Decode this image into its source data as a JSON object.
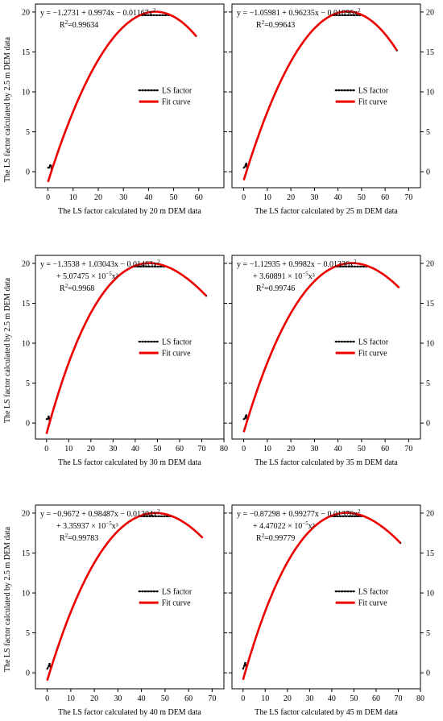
{
  "figure": {
    "ylabel": "The LS factor calculated by 2.5 m DEM data"
  },
  "chart_data": [
    {
      "type": "line",
      "xlabel": "The LS factor calculated by 20 m DEM data",
      "ylabel": "The LS factor calculated by 2.5 m DEM data",
      "xlim": [
        -5,
        70
      ],
      "ylim": [
        -2,
        21
      ],
      "xticks": [
        0,
        10,
        20,
        30,
        40,
        50,
        60
      ],
      "yticks": [
        0,
        5,
        10,
        15,
        20
      ],
      "equation_lines": [
        {
          "text": "y = −1.2731 + 0.9974x − 0.01167x",
          "sup": "2"
        },
        {
          "text": "R",
          "sup": "2",
          "after": "=0.99634"
        }
      ],
      "legend": [
        "LS factor",
        "Fit curve"
      ],
      "legend_position": "center-right",
      "coef": [
        -1.2731,
        0.9974,
        -0.01167,
        0
      ],
      "fit_x_range": [
        0,
        59
      ],
      "data_x_range": [
        0,
        59
      ],
      "plateau": 19.6,
      "series": [
        {
          "name": "LS factor",
          "style": "dotted",
          "color": "#000000"
        },
        {
          "name": "Fit curve",
          "style": "solid",
          "color": "#ee0000"
        }
      ],
      "right_axis": false
    },
    {
      "type": "line",
      "xlabel": "The LS factor calculated by 25 m DEM data",
      "ylabel": "",
      "xlim": [
        -5,
        75
      ],
      "ylim": [
        -2,
        21
      ],
      "xticks": [
        0,
        10,
        20,
        30,
        40,
        50,
        60,
        70
      ],
      "yticks": [
        0,
        5,
        10,
        15,
        20
      ],
      "equation_lines": [
        {
          "text": "y = −1.05981 + 0.96235x − 0.01096x",
          "sup": "2"
        },
        {
          "text": "R",
          "sup": "2",
          "after": "=0.99643"
        }
      ],
      "legend": [
        "LS factor",
        "Fit curve"
      ],
      "legend_position": "center-right",
      "coef": [
        -1.05981,
        0.96235,
        -0.01096,
        0
      ],
      "fit_x_range": [
        0,
        65
      ],
      "data_x_range": [
        0,
        65
      ],
      "plateau": 19.6,
      "series": [
        {
          "name": "LS factor",
          "style": "dotted",
          "color": "#000000"
        },
        {
          "name": "Fit curve",
          "style": "solid",
          "color": "#ee0000"
        }
      ],
      "right_axis": true
    },
    {
      "type": "line",
      "xlabel": "The LS factor calculated by 30 m DEM data",
      "ylabel": "The LS factor calculated by 2.5 m DEM data",
      "xlim": [
        -5,
        80
      ],
      "ylim": [
        -2,
        21
      ],
      "xticks": [
        0,
        10,
        20,
        30,
        40,
        50,
        60,
        70,
        80
      ],
      "yticks": [
        0,
        5,
        10,
        15,
        20
      ],
      "equation_lines": [
        {
          "text": "y = −1.3538 + 1.03043x − 0.01463x",
          "sup": "2"
        },
        {
          "text": "+ 5.07475 × 10",
          "sup": "−5",
          "after": "x³"
        },
        {
          "text": "R",
          "sup": "2",
          "after": "=0.9968"
        }
      ],
      "legend": [
        "LS factor",
        "Fit curve"
      ],
      "legend_position": "center-right",
      "coef": [
        -1.3538,
        1.03043,
        -0.01463,
        5.07475e-05
      ],
      "fit_x_range": [
        0,
        72
      ],
      "data_x_range": [
        0,
        72
      ],
      "plateau": 19.6,
      "series": [
        {
          "name": "LS factor",
          "style": "dotted",
          "color": "#000000"
        },
        {
          "name": "Fit curve",
          "style": "solid",
          "color": "#ee0000"
        }
      ],
      "right_axis": false
    },
    {
      "type": "line",
      "xlabel": "The LS factor calculated by 35 m DEM data",
      "ylabel": "",
      "xlim": [
        -5,
        75
      ],
      "ylim": [
        -2,
        21
      ],
      "xticks": [
        0,
        10,
        20,
        30,
        40,
        50,
        60,
        70
      ],
      "yticks": [
        0,
        5,
        10,
        15,
        20
      ],
      "equation_lines": [
        {
          "text": "y = −1.12935 + 0.9982x − 0.01336x",
          "sup": "2"
        },
        {
          "text": "+ 3.60891 × 10",
          "sup": "−5",
          "after": "x³"
        },
        {
          "text": "R",
          "sup": "2",
          "after": "=0.99746"
        }
      ],
      "legend": [
        "LS factor",
        "Fit curve"
      ],
      "legend_position": "center-right",
      "coef": [
        -1.12935,
        0.9982,
        -0.01336,
        3.60891e-05
      ],
      "fit_x_range": [
        0,
        66
      ],
      "data_x_range": [
        0,
        66
      ],
      "plateau": 19.6,
      "series": [
        {
          "name": "LS factor",
          "style": "dotted",
          "color": "#000000"
        },
        {
          "name": "Fit curve",
          "style": "solid",
          "color": "#ee0000"
        }
      ],
      "right_axis": true
    },
    {
      "type": "line",
      "xlabel": "The LS factor calculated by 40 m DEM data",
      "ylabel": "The LS factor calculated by 2.5 m DEM data",
      "xlim": [
        -5,
        75
      ],
      "ylim": [
        -2,
        21
      ],
      "xticks": [
        0,
        10,
        20,
        30,
        40,
        50,
        60,
        70
      ],
      "yticks": [
        0,
        5,
        10,
        15,
        20
      ],
      "equation_lines": [
        {
          "text": "y = −0.9672 + 0.98487x − 0.01304x",
          "sup": "2"
        },
        {
          "text": "+ 3.35937 × 10",
          "sup": "−5",
          "after": "x³"
        },
        {
          "text": "R",
          "sup": "2",
          "after": "=0.99783"
        }
      ],
      "legend": [
        "LS factor",
        "Fit curve"
      ],
      "legend_position": "center-right",
      "coef": [
        -0.9672,
        0.98487,
        -0.01304,
        3.35937e-05
      ],
      "fit_x_range": [
        0,
        66
      ],
      "data_x_range": [
        0,
        66
      ],
      "plateau": 19.6,
      "series": [
        {
          "name": "LS factor",
          "style": "dotted",
          "color": "#000000"
        },
        {
          "name": "Fit curve",
          "style": "solid",
          "color": "#ee0000"
        }
      ],
      "right_axis": false
    },
    {
      "type": "line",
      "xlabel": "The LS factor calculated by 45 m DEM data",
      "ylabel": "",
      "xlim": [
        -5,
        80
      ],
      "ylim": [
        -2,
        21
      ],
      "xticks": [
        0,
        10,
        20,
        30,
        40,
        50,
        60,
        70,
        80
      ],
      "yticks": [
        0,
        5,
        10,
        15,
        20
      ],
      "equation_lines": [
        {
          "text": "y = −0.87298 + 0.99277x − 0.01376x",
          "sup": "2"
        },
        {
          "text": "+ 4.47022 × 10",
          "sup": "−5",
          "after": "x³"
        },
        {
          "text": "R",
          "sup": "2",
          "after": "=0.99779"
        }
      ],
      "legend": [
        "LS factor",
        "Fit curve"
      ],
      "legend_position": "center-right",
      "coef": [
        -0.87298,
        0.99277,
        -0.01376,
        4.47022e-05
      ],
      "fit_x_range": [
        0,
        71
      ],
      "data_x_range": [
        0,
        71
      ],
      "plateau": 19.6,
      "series": [
        {
          "name": "LS factor",
          "style": "dotted",
          "color": "#000000"
        },
        {
          "name": "Fit curve",
          "style": "solid",
          "color": "#ee0000"
        }
      ],
      "right_axis": true
    }
  ]
}
